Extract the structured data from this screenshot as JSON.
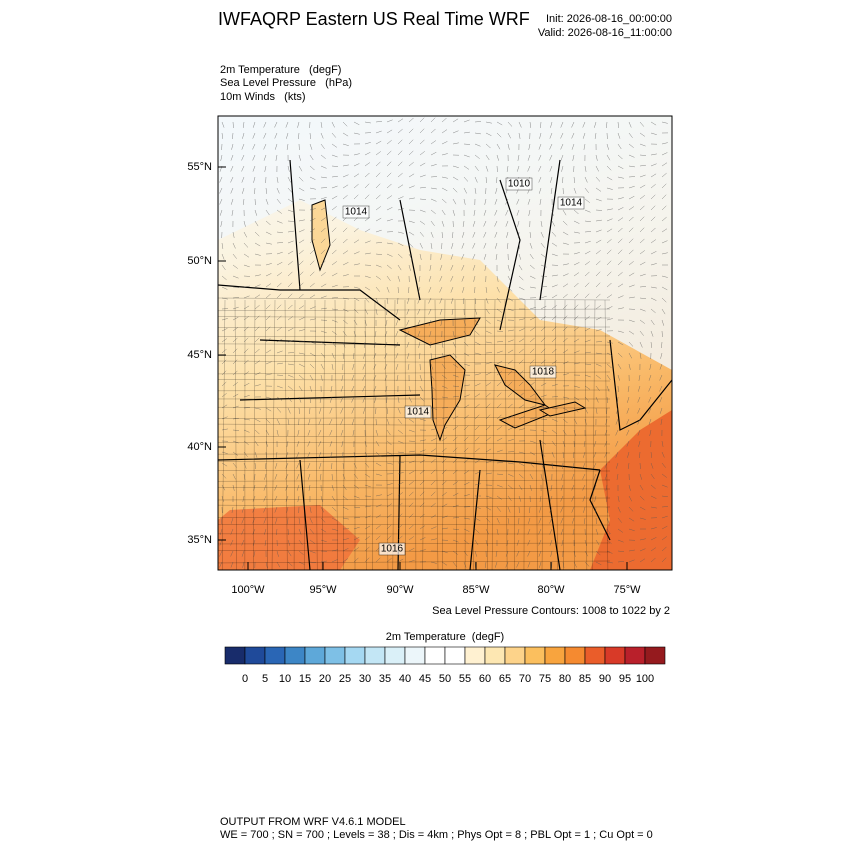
{
  "header": {
    "title": "IWFAQRP Eastern US Real Time WRF",
    "init": "Init: 2026-08-16_00:00:00",
    "valid": "Valid: 2026-08-16_11:00:00"
  },
  "fields": [
    "2m Temperature   (degF)",
    "Sea Level Pressure   (hPa)",
    "10m Winds   (kts)"
  ],
  "map": {
    "lat_labels": [
      "55°N",
      "50°N",
      "45°N",
      "40°N",
      "35°N"
    ],
    "lon_labels": [
      "100°W",
      "95°W",
      "90°W",
      "85°W",
      "80°W",
      "75°W"
    ],
    "contour_labels": [
      "1014",
      "1010",
      "1014",
      "1018",
      "1014",
      "1016"
    ],
    "contour_note": "Sea Level Pressure Contours: 1008 to 1022 by 2"
  },
  "colorbar": {
    "title": "2m Temperature  (degF)",
    "ticks": [
      0,
      5,
      10,
      15,
      20,
      25,
      30,
      35,
      40,
      45,
      50,
      55,
      60,
      65,
      70,
      75,
      80,
      85,
      90,
      95,
      100
    ],
    "colors": [
      "#182c6b",
      "#1f4a9a",
      "#2a66b5",
      "#3d86c6",
      "#5ea8d9",
      "#7ec0e6",
      "#a5d8f2",
      "#c3e6f5",
      "#daf0f8",
      "#ecf6fa",
      "#ffffff",
      "#ffffff",
      "#fff1d1",
      "#fde7b2",
      "#fdd38a",
      "#fbbf5e",
      "#f8a43e",
      "#f58a30",
      "#ea5d2a",
      "#d83a28",
      "#b9202b",
      "#951a1e"
    ]
  },
  "footer": [
    "OUTPUT FROM WRF V4.6.1 MODEL",
    "WE = 700 ; SN = 700 ; Levels = 38 ; Dis = 4km ; Phys Opt = 8 ; PBL Opt = 1 ; Cu Opt = 0"
  ]
}
